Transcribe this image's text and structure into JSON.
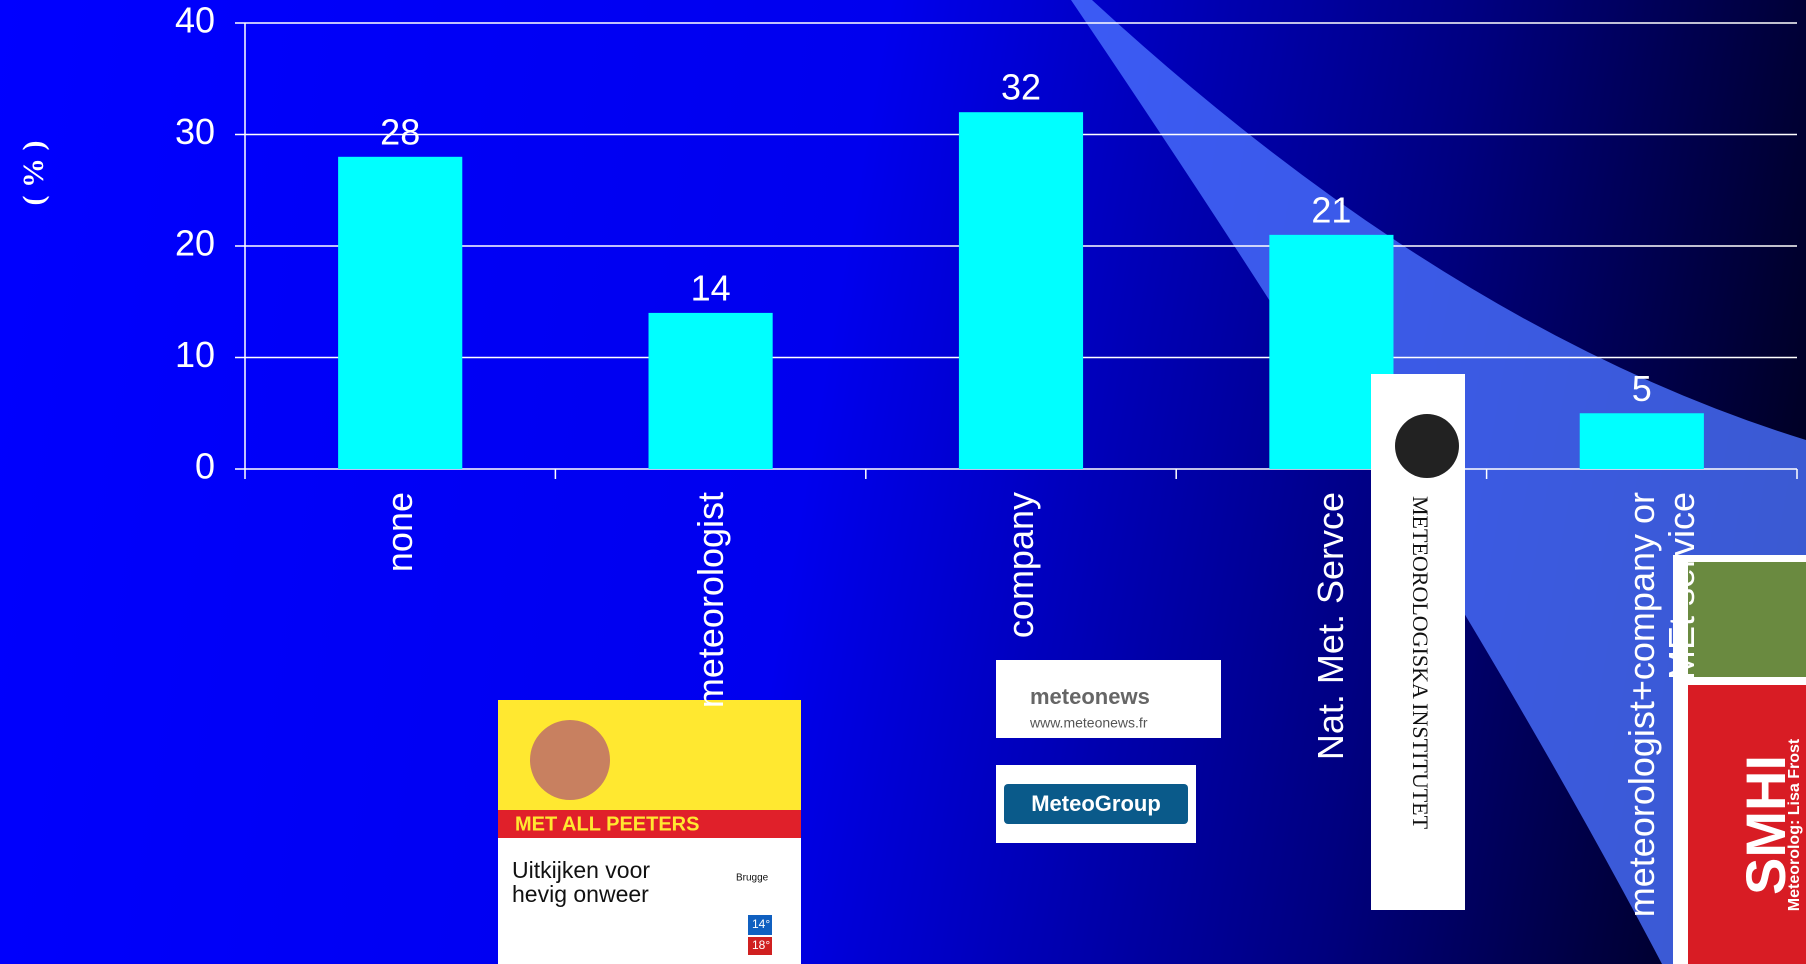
{
  "chart_data": {
    "type": "bar",
    "y_label": "( % )",
    "categories": [
      "none",
      "meteorologist",
      "company",
      "Nat. Met. Servce",
      "meteorologist+company or MEt service"
    ],
    "values": [
      28,
      14,
      32,
      21,
      5
    ],
    "color": "#00ffff",
    "ylim": [
      0,
      40
    ],
    "yticks": [
      0,
      10,
      20,
      30,
      40
    ],
    "grid": true
  },
  "logos": {
    "newspaper": {
      "masthead": "MET ALL PEETERS",
      "headline": "Uitkijken voor hevig onweer",
      "city": "Brugge",
      "temp_low": "14°",
      "temp_high": "18°"
    },
    "meteonews": {
      "name": "meteonews",
      "url": "www.meteonews.fr"
    },
    "meteogroup": {
      "name": "MeteoGroup"
    },
    "met_institute": {
      "name": "METEOROLOGISKA INSTITUTET"
    },
    "smhi": {
      "name": "SMHI",
      "person": "Meteorolog: Lisa Frost"
    }
  }
}
